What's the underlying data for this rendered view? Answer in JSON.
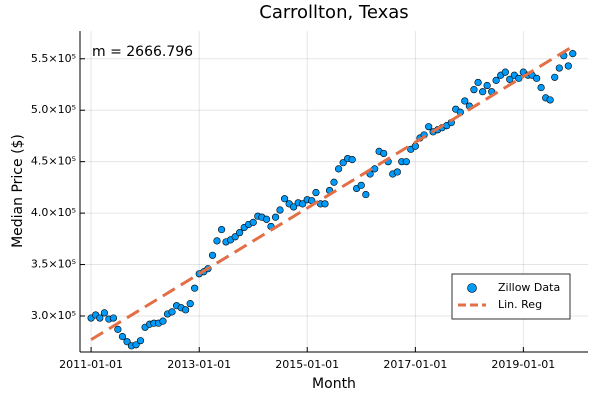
{
  "chart_data": {
    "type": "scatter",
    "title": "Carrollton, Texas",
    "xlabel": "Month",
    "ylabel": "Median Price ($)",
    "annotation": "m = 2666.796",
    "x": [
      "2011-01-01",
      "2011-02-01",
      "2011-03-01",
      "2011-04-01",
      "2011-05-01",
      "2011-06-01",
      "2011-07-01",
      "2011-08-01",
      "2011-09-01",
      "2011-10-01",
      "2011-11-01",
      "2011-12-01",
      "2012-01-01",
      "2012-02-01",
      "2012-03-01",
      "2012-04-01",
      "2012-05-01",
      "2012-06-01",
      "2012-07-01",
      "2012-08-01",
      "2012-09-01",
      "2012-10-01",
      "2012-11-01",
      "2012-12-01",
      "2013-01-01",
      "2013-02-01",
      "2013-03-01",
      "2013-04-01",
      "2013-05-01",
      "2013-06-01",
      "2013-07-01",
      "2013-08-01",
      "2013-09-01",
      "2013-10-01",
      "2013-11-01",
      "2013-12-01",
      "2014-01-01",
      "2014-02-01",
      "2014-03-01",
      "2014-04-01",
      "2014-05-01",
      "2014-06-01",
      "2014-07-01",
      "2014-08-01",
      "2014-09-01",
      "2014-10-01",
      "2014-11-01",
      "2014-12-01",
      "2015-01-01",
      "2015-02-01",
      "2015-03-01",
      "2015-04-01",
      "2015-05-01",
      "2015-06-01",
      "2015-07-01",
      "2015-08-01",
      "2015-09-01",
      "2015-10-01",
      "2015-11-01",
      "2015-12-01",
      "2016-01-01",
      "2016-02-01",
      "2016-03-01",
      "2016-04-01",
      "2016-05-01",
      "2016-06-01",
      "2016-07-01",
      "2016-08-01",
      "2016-09-01",
      "2016-10-01",
      "2016-11-01",
      "2016-12-01",
      "2017-01-01",
      "2017-02-01",
      "2017-03-01",
      "2017-04-01",
      "2017-05-01",
      "2017-06-01",
      "2017-07-01",
      "2017-08-01",
      "2017-09-01",
      "2017-10-01",
      "2017-11-01",
      "2017-12-01",
      "2018-01-01",
      "2018-02-01",
      "2018-03-01",
      "2018-04-01",
      "2018-05-01",
      "2018-06-01",
      "2018-07-01",
      "2018-08-01",
      "2018-09-01",
      "2018-10-01",
      "2018-11-01",
      "2018-12-01",
      "2019-01-01",
      "2019-02-01",
      "2019-03-01",
      "2019-04-01",
      "2019-05-01",
      "2019-06-01",
      "2019-07-01",
      "2019-08-01",
      "2019-09-01",
      "2019-10-01",
      "2019-11-01",
      "2019-12-01"
    ],
    "series": [
      {
        "name": "Zillow Data",
        "color": "#009af9",
        "values": [
          298000,
          301000,
          298000,
          303000,
          297000,
          298000,
          287000,
          280000,
          275000,
          271000,
          272000,
          276000,
          289000,
          292000,
          293000,
          293000,
          295000,
          302000,
          304000,
          310000,
          308000,
          306000,
          312000,
          327000,
          341000,
          343000,
          346000,
          359000,
          373000,
          384000,
          372000,
          374000,
          377000,
          381000,
          386000,
          389000,
          391000,
          397000,
          396000,
          394000,
          387000,
          396000,
          403000,
          414000,
          409000,
          406000,
          410000,
          409000,
          413000,
          412000,
          420000,
          409000,
          409000,
          422000,
          430000,
          443000,
          449000,
          453000,
          452000,
          424000,
          427000,
          418000,
          438000,
          443000,
          460000,
          458000,
          450000,
          438000,
          440000,
          450000,
          450000,
          462000,
          465000,
          473000,
          476000,
          484000,
          479000,
          481000,
          483000,
          485000,
          488000,
          501000,
          498000,
          509000,
          504000,
          520000,
          527000,
          518000,
          524000,
          518000,
          529000,
          534000,
          537000,
          530000,
          534000,
          531000,
          537000,
          534000,
          534000,
          531000,
          522000,
          512000,
          510000,
          532000,
          541000,
          553000,
          543000,
          555000
        ]
      },
      {
        "name": "Lin. Reg",
        "color": "#e26f46",
        "x": [
          "2011-01-01",
          "2019-12-01"
        ],
        "values": [
          277000,
          562000
        ]
      }
    ],
    "xlim": [
      "2010-10-18",
      "2020-03-13"
    ],
    "xticks": [
      "2011-01-01",
      "2013-01-01",
      "2015-01-01",
      "2017-01-01",
      "2019-01-01"
    ],
    "ylim": [
      265000,
      577000
    ],
    "yticks": [
      {
        "value": 300000,
        "label": "3.0×10⁵"
      },
      {
        "value": 350000,
        "label": "3.5×10⁵"
      },
      {
        "value": 400000,
        "label": "4.0×10⁵"
      },
      {
        "value": 450000,
        "label": "4.5×10⁵"
      },
      {
        "value": 500000,
        "label": "5.0×10⁵"
      },
      {
        "value": 550000,
        "label": "5.5×10⁵"
      }
    ],
    "grid": true,
    "legend": "bottom-right"
  }
}
